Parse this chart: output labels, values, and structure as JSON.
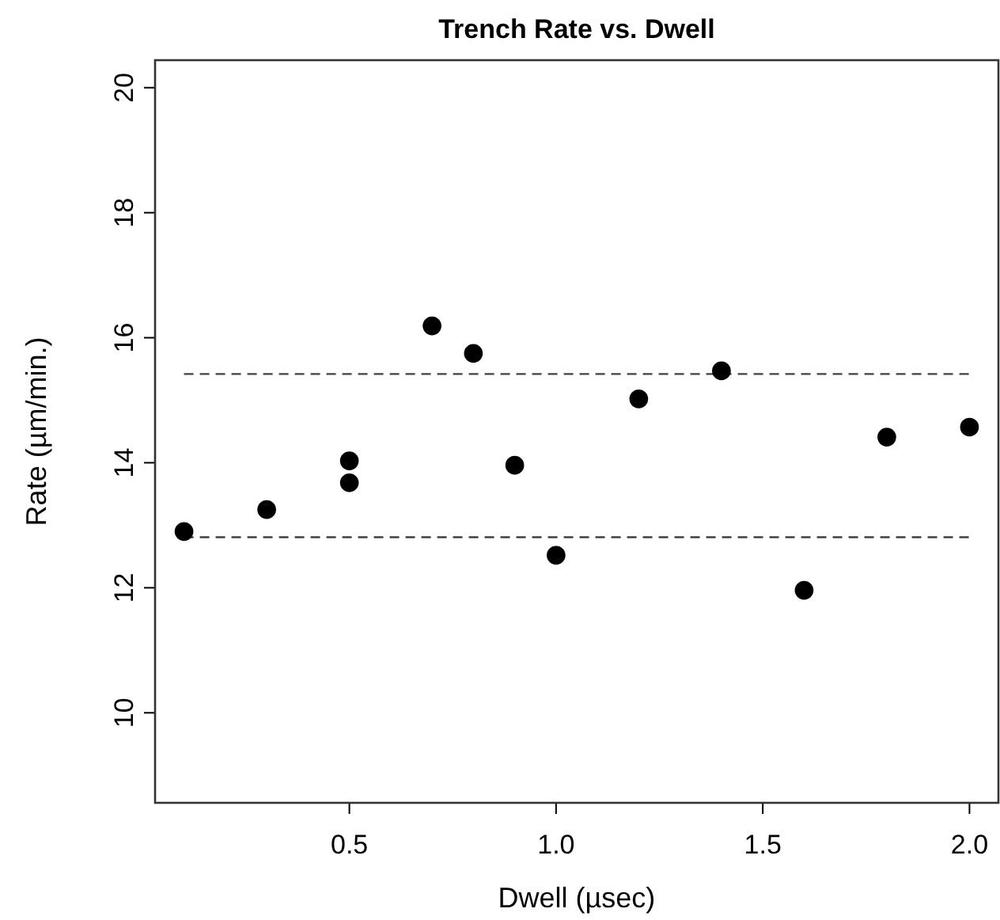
{
  "chart_data": {
    "type": "scatter",
    "title": "Trench Rate vs. Dwell",
    "xlabel": "Dwell (µsec)",
    "ylabel": "Rate (µm/min.)",
    "x": [
      0.1,
      0.3,
      0.5,
      0.5,
      0.7,
      0.8,
      0.9,
      1.0,
      1.2,
      1.4,
      1.6,
      1.8,
      2.0
    ],
    "series": [
      {
        "color": "#000000",
        "values": [
          12.9,
          13.25,
          14.03,
          13.68,
          16.19,
          15.75,
          13.96,
          12.52,
          15.02,
          15.47,
          11.96,
          14.41,
          14.57
        ]
      }
    ],
    "xlim": [
      0.03,
      2.07
    ],
    "ylim": [
      8.56,
      20.44
    ],
    "xticks": [
      {
        "value": 0.5,
        "label": "0.5"
      },
      {
        "value": 1,
        "label": "1.0"
      },
      {
        "value": 1.5,
        "label": "1.5"
      },
      {
        "value": 2,
        "label": "2.0"
      }
    ],
    "yticks": [
      10,
      12,
      14,
      16,
      18,
      20
    ],
    "ref_lines": [
      {
        "axis": "y",
        "value": 15.42,
        "color": "#404040",
        "line_style": "dashed"
      },
      {
        "axis": "y",
        "value": 12.81,
        "color": "#404040",
        "line_style": "dashed"
      }
    ],
    "marker": "circle",
    "grid": false
  }
}
